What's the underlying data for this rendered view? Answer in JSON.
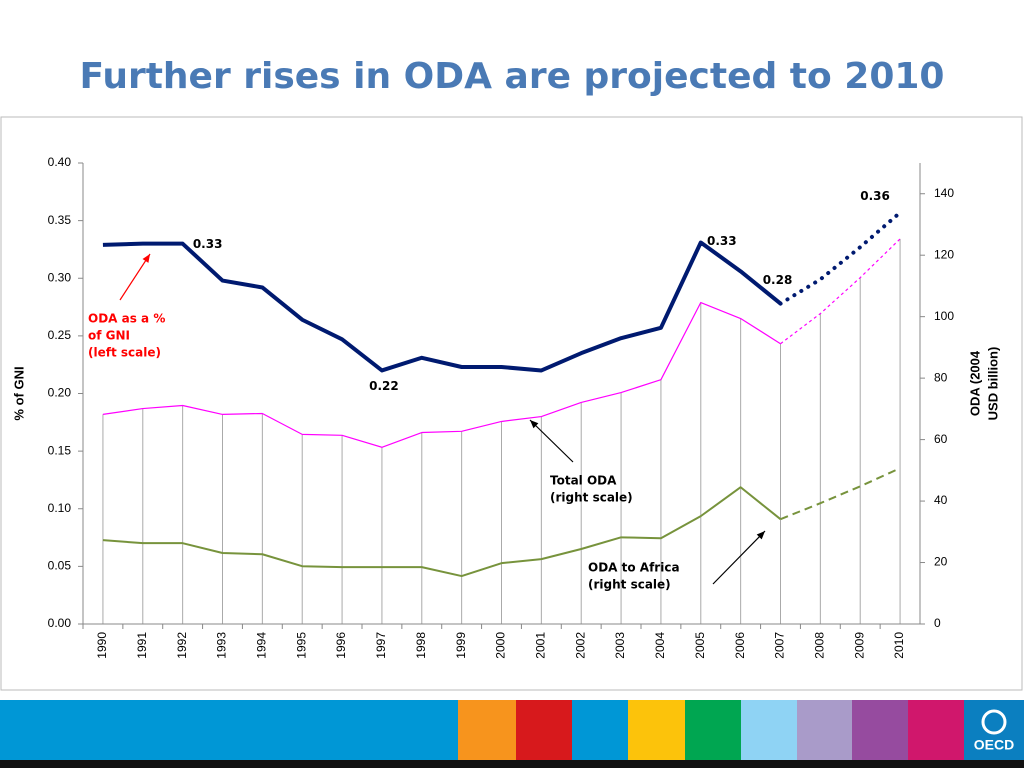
{
  "chart_data": {
    "type": "line",
    "title": "Further rises in ODA are projected to 2010",
    "ylabel": "% of GNI",
    "y2label": [
      "ODA (2004",
      "USD billion)"
    ],
    "categories": [
      "1990",
      "1991",
      "1992",
      "1993",
      "1994",
      "1995",
      "1996",
      "1997",
      "1998",
      "1999",
      "2000",
      "2001",
      "2002",
      "2003",
      "2004",
      "2005",
      "2006",
      "2007",
      "2008",
      "2009",
      "2010"
    ],
    "projected_from": "2007",
    "ylim": [
      0,
      0.4
    ],
    "yticks": [
      {
        "value": 0,
        "label": "0.00"
      },
      0.05,
      {
        "value": 0.1,
        "label": "0.10"
      },
      0.15,
      {
        "value": 0.2,
        "label": "0.20"
      },
      0.25,
      {
        "value": 0.3,
        "label": "0.30"
      },
      0.35,
      {
        "value": 0.4,
        "label": "0.40"
      }
    ],
    "y2lim": [
      0,
      150
    ],
    "y2ticks": [
      0,
      20,
      40,
      60,
      80,
      100,
      120,
      140
    ],
    "series": [
      {
        "name": "ODA as a % of GNI",
        "color": "#001a70",
        "axis": "y",
        "values": [
          0.329,
          0.33,
          0.33,
          0.298,
          0.292,
          0.264,
          0.247,
          0.22,
          0.231,
          0.223,
          0.223,
          0.22,
          0.235,
          0.248,
          0.257,
          0.331,
          0.306,
          0.278,
          0.299,
          0.327,
          0.357
        ],
        "value_labels": [
          null,
          null,
          "0.33",
          null,
          null,
          null,
          null,
          "0.22",
          null,
          null,
          null,
          null,
          null,
          null,
          null,
          "0.33",
          null,
          "0.28",
          null,
          null,
          "0.36"
        ]
      },
      {
        "name": "Total ODA",
        "color": "#ff00ff",
        "axis": "y2",
        "values": [
          68.2,
          70.1,
          71.1,
          68.2,
          68.5,
          61.7,
          61.4,
          57.5,
          62.3,
          62.7,
          65.9,
          67.5,
          72.1,
          75.3,
          79.5,
          104.6,
          99.4,
          91.2,
          101,
          112.7,
          125.3
        ]
      },
      {
        "name": "ODA to Africa",
        "color": "#77933c",
        "axis": "y2",
        "values": [
          27.3,
          26.3,
          26.3,
          23.1,
          22.7,
          18.8,
          18.5,
          18.5,
          18.5,
          15.6,
          19.8,
          21.1,
          24.4,
          28.2,
          27.9,
          35.1,
          44.5,
          34.1,
          39.3,
          44.8,
          50.7
        ]
      }
    ],
    "annotations": [
      {
        "lines": [
          "ODA as a %",
          "of GNI",
          "(left scale)"
        ],
        "color": "#ff0000"
      },
      {
        "lines": [
          "Total ODA",
          "(right scale)"
        ],
        "color": "#000000"
      },
      {
        "lines": [
          "ODA to Africa",
          "(right scale)"
        ],
        "color": "#000000"
      }
    ]
  },
  "logo": "OECD"
}
